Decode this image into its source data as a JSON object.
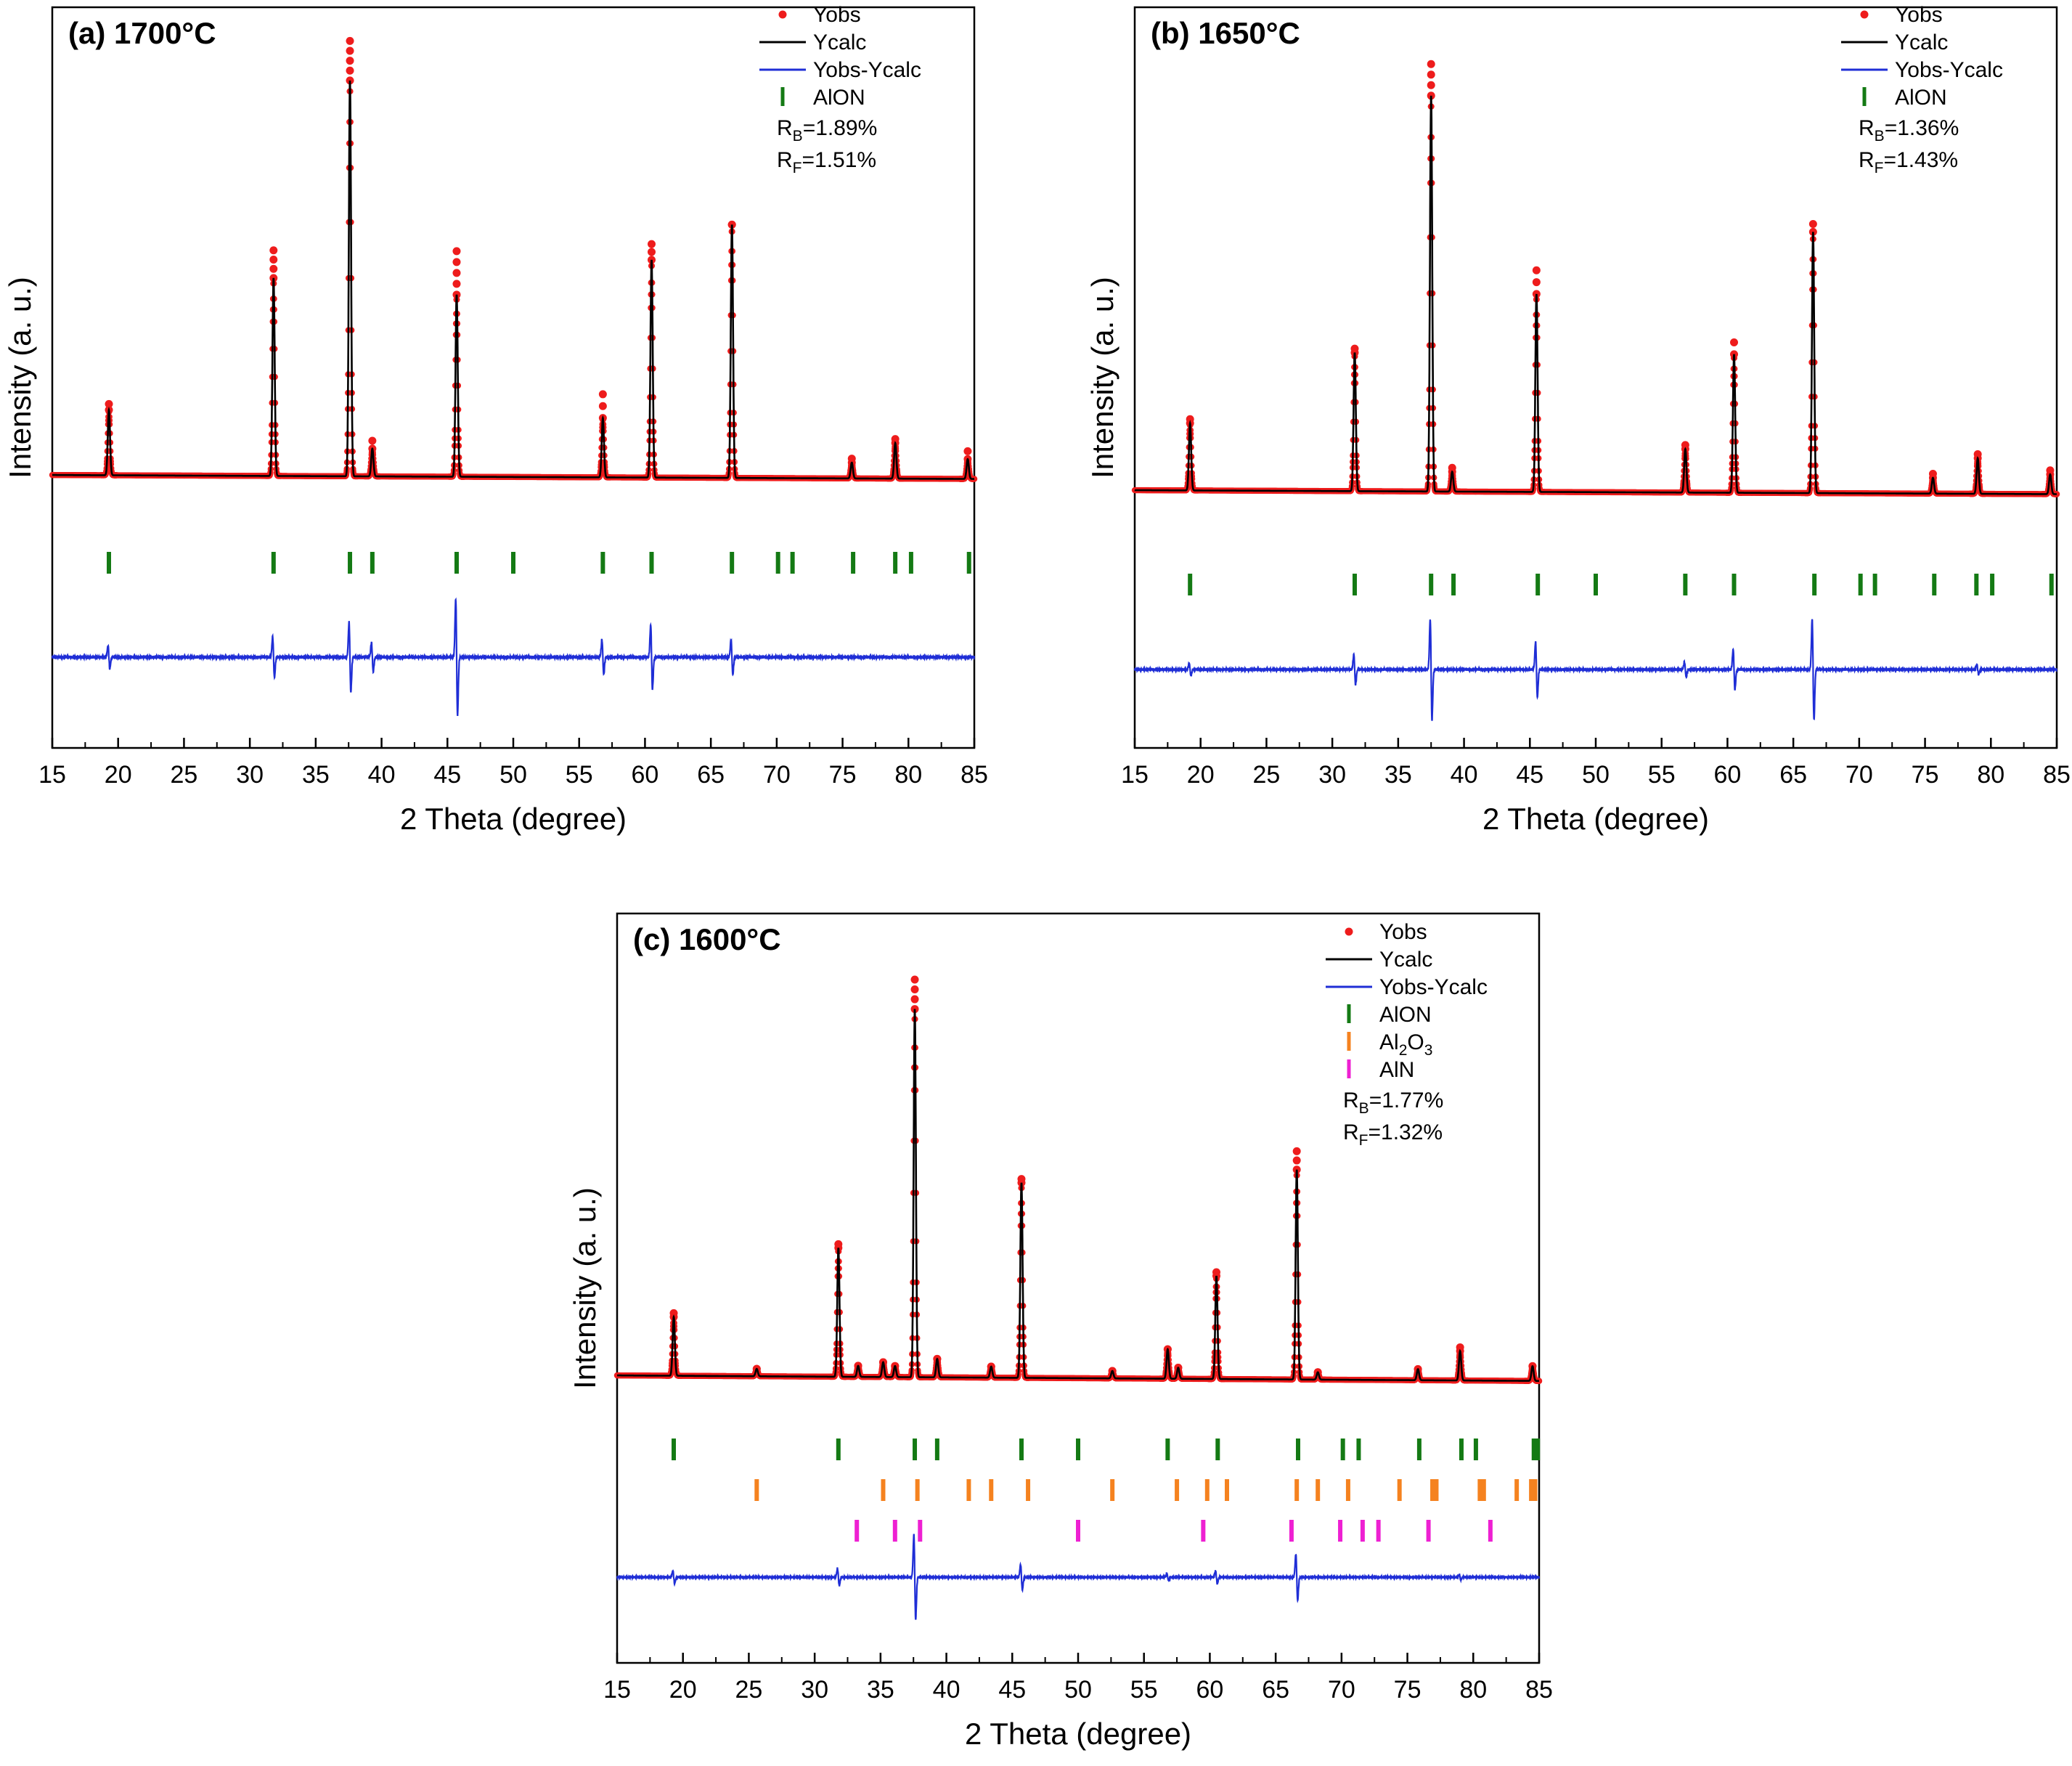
{
  "figure": {
    "panels_count": 3
  },
  "chart_data": [
    {
      "type": "line",
      "panel_label": "(a) 1700°C",
      "title": "",
      "xlabel": "2 Theta (degree)",
      "ylabel": "Intensity (a. u.)",
      "xlim": [
        15,
        85
      ],
      "x_ticks": [
        "15",
        "20",
        "25",
        "30",
        "35",
        "40",
        "45",
        "50",
        "55",
        "60",
        "65",
        "70",
        "75",
        "80",
        "85"
      ],
      "y_ticks": [],
      "legend_position": "top-right",
      "legend": [
        {
          "name": "Yobs",
          "kind": "dot",
          "color": "#ee1c1c"
        },
        {
          "name": "Ycalc",
          "kind": "line",
          "color": "#000000"
        },
        {
          "name": "Yobs-Ycalc",
          "kind": "line",
          "color": "#1f2ed6"
        },
        {
          "name": "AlON",
          "kind": "tick",
          "color": "#147a14"
        }
      ],
      "annotations": [
        {
          "prefix": "R",
          "sub": "B",
          "suffix": "=1.89%"
        },
        {
          "prefix": "R",
          "sub": "F",
          "suffix": "=1.51%"
        }
      ],
      "background": {
        "start": 0.075,
        "end": 0.065
      },
      "peaks": [
        {
          "x": 19.3,
          "h": 0.165,
          "obs": 0.18
        },
        {
          "x": 31.8,
          "h": 0.5,
          "obs": 0.57
        },
        {
          "x": 37.6,
          "h": 1.0,
          "obs": 1.1
        },
        {
          "x": 39.3,
          "h": 0.07,
          "obs": 0.09
        },
        {
          "x": 45.7,
          "h": 0.46,
          "obs": 0.57
        },
        {
          "x": 56.8,
          "h": 0.15,
          "obs": 0.21
        },
        {
          "x": 60.5,
          "h": 0.55,
          "obs": 0.59
        },
        {
          "x": 66.6,
          "h": 0.64,
          "obs": 0.64
        },
        {
          "x": 75.7,
          "h": 0.04,
          "obs": 0.05
        },
        {
          "x": 79.0,
          "h": 0.09,
          "obs": 0.1
        },
        {
          "x": 84.5,
          "h": 0.05,
          "obs": 0.07
        }
      ],
      "reflections": [
        {
          "phase": "AlON",
          "color": "#147a14",
          "x": [
            19.3,
            31.8,
            37.6,
            39.3,
            45.7,
            50.0,
            56.8,
            60.5,
            66.6,
            70.1,
            71.2,
            75.8,
            79.0,
            80.2,
            84.6
          ]
        }
      ],
      "difference": [
        {
          "x": 19.3,
          "a": 0.2
        },
        {
          "x": 31.8,
          "a": 0.35
        },
        {
          "x": 37.6,
          "a": 0.6
        },
        {
          "x": 39.3,
          "a": 0.25
        },
        {
          "x": 45.7,
          "a": 1.0
        },
        {
          "x": 56.8,
          "a": 0.3
        },
        {
          "x": 60.5,
          "a": 0.55
        },
        {
          "x": 66.6,
          "a": 0.3
        }
      ]
    },
    {
      "type": "line",
      "panel_label": "(b) 1650°C",
      "title": "",
      "xlabel": "2 Theta (degree)",
      "ylabel": "Intensity (a. u.)",
      "xlim": [
        15,
        85
      ],
      "x_ticks": [
        "15",
        "20",
        "25",
        "30",
        "35",
        "40",
        "45",
        "50",
        "55",
        "60",
        "65",
        "70",
        "75",
        "80",
        "85"
      ],
      "y_ticks": [],
      "legend_position": "top-right",
      "legend": [
        {
          "name": "Yobs",
          "kind": "dot",
          "color": "#ee1c1c"
        },
        {
          "name": "Ycalc",
          "kind": "line",
          "color": "#000000"
        },
        {
          "name": "Yobs-Ycalc",
          "kind": "line",
          "color": "#1f2ed6"
        },
        {
          "name": "AlON",
          "kind": "tick",
          "color": "#147a14"
        }
      ],
      "annotations": [
        {
          "prefix": "R",
          "sub": "B",
          "suffix": "=1.36%"
        },
        {
          "prefix": "R",
          "sub": "F",
          "suffix": "=1.43%"
        }
      ],
      "background": {
        "start": 0.11,
        "end": 0.1
      },
      "peaks": [
        {
          "x": 19.2,
          "h": 0.17,
          "obs": 0.18
        },
        {
          "x": 31.7,
          "h": 0.35,
          "obs": 0.36
        },
        {
          "x": 37.5,
          "h": 1.0,
          "obs": 1.08
        },
        {
          "x": 39.1,
          "h": 0.05,
          "obs": 0.06
        },
        {
          "x": 45.5,
          "h": 0.5,
          "obs": 0.56
        },
        {
          "x": 56.8,
          "h": 0.11,
          "obs": 0.12
        },
        {
          "x": 60.5,
          "h": 0.35,
          "obs": 0.38
        },
        {
          "x": 66.5,
          "h": 0.66,
          "obs": 0.68
        },
        {
          "x": 75.6,
          "h": 0.04,
          "obs": 0.05
        },
        {
          "x": 79.0,
          "h": 0.09,
          "obs": 0.1
        },
        {
          "x": 84.5,
          "h": 0.05,
          "obs": 0.06
        }
      ],
      "reflections": [
        {
          "phase": "AlON",
          "color": "#147a14",
          "x": [
            19.2,
            31.7,
            37.5,
            39.2,
            45.6,
            50.0,
            56.8,
            60.5,
            66.6,
            70.1,
            71.2,
            75.7,
            78.9,
            80.1,
            84.6
          ]
        }
      ],
      "difference": [
        {
          "x": 19.2,
          "a": 0.12
        },
        {
          "x": 31.7,
          "a": 0.3
        },
        {
          "x": 37.5,
          "a": 1.0
        },
        {
          "x": 45.5,
          "a": 0.55
        },
        {
          "x": 56.8,
          "a": 0.15
        },
        {
          "x": 60.5,
          "a": 0.4
        },
        {
          "x": 66.5,
          "a": 1.0
        },
        {
          "x": 79.0,
          "a": 0.1
        }
      ]
    },
    {
      "type": "line",
      "panel_label": "(c) 1600°C",
      "title": "",
      "xlabel": "2 Theta (degree)",
      "ylabel": "Intensity (a. u.)",
      "xlim": [
        15,
        85
      ],
      "x_ticks": [
        "15",
        "20",
        "25",
        "30",
        "35",
        "40",
        "45",
        "50",
        "55",
        "60",
        "65",
        "70",
        "75",
        "80",
        "85"
      ],
      "y_ticks": [],
      "legend_position": "top-right",
      "legend": [
        {
          "name": "Yobs",
          "kind": "dot",
          "color": "#ee1c1c"
        },
        {
          "name": "Ycalc",
          "kind": "line",
          "color": "#000000"
        },
        {
          "name": "Yobs-Ycalc",
          "kind": "line",
          "color": "#1f2ed6"
        },
        {
          "name": "AlON",
          "kind": "tick",
          "color": "#147a14"
        },
        {
          "name": "Al",
          "sub": "2",
          "name2": "O",
          "sub2": "3",
          "kind": "tick",
          "color": "#f5821f"
        },
        {
          "name": "AlN",
          "kind": "tick",
          "color": "#ee20d2"
        }
      ],
      "annotations": [
        {
          "prefix": "R",
          "sub": "B",
          "suffix": "=1.77%"
        },
        {
          "prefix": "R",
          "sub": "F",
          "suffix": "=1.32%"
        }
      ],
      "background": {
        "start": 0.055,
        "end": 0.04
      },
      "peaks": [
        {
          "x": 19.3,
          "h": 0.16,
          "obs": 0.17
        },
        {
          "x": 25.6,
          "h": 0.02,
          "obs": 0.02
        },
        {
          "x": 31.8,
          "h": 0.35,
          "obs": 0.36
        },
        {
          "x": 33.3,
          "h": 0.03,
          "obs": 0.03
        },
        {
          "x": 35.2,
          "h": 0.04,
          "obs": 0.04
        },
        {
          "x": 36.1,
          "h": 0.03,
          "obs": 0.03
        },
        {
          "x": 37.6,
          "h": 1.0,
          "obs": 1.08
        },
        {
          "x": 39.3,
          "h": 0.05,
          "obs": 0.05
        },
        {
          "x": 43.4,
          "h": 0.03,
          "obs": 0.03
        },
        {
          "x": 45.7,
          "h": 0.53,
          "obs": 0.54
        },
        {
          "x": 52.6,
          "h": 0.02,
          "obs": 0.02
        },
        {
          "x": 56.8,
          "h": 0.08,
          "obs": 0.08
        },
        {
          "x": 57.6,
          "h": 0.03,
          "obs": 0.03
        },
        {
          "x": 60.5,
          "h": 0.28,
          "obs": 0.29
        },
        {
          "x": 66.6,
          "h": 0.57,
          "obs": 0.62
        },
        {
          "x": 68.2,
          "h": 0.02,
          "obs": 0.02
        },
        {
          "x": 75.8,
          "h": 0.03,
          "obs": 0.03
        },
        {
          "x": 79.0,
          "h": 0.08,
          "obs": 0.09
        },
        {
          "x": 84.5,
          "h": 0.04,
          "obs": 0.04
        }
      ],
      "reflections": [
        {
          "phase": "AlON",
          "color": "#147a14",
          "x": [
            19.3,
            31.8,
            37.6,
            39.3,
            45.7,
            50.0,
            56.8,
            60.6,
            66.7,
            70.1,
            71.3,
            75.9,
            79.1,
            80.2,
            84.6,
            84.9
          ]
        },
        {
          "phase": "Al2O3",
          "color": "#f5821f",
          "x": [
            25.6,
            35.2,
            37.8,
            41.7,
            43.4,
            46.2,
            52.6,
            57.5,
            59.8,
            61.3,
            66.6,
            68.2,
            70.5,
            74.4,
            76.9,
            77.2,
            80.5,
            80.8,
            83.3,
            84.4,
            84.7
          ]
        },
        {
          "phase": "AlN",
          "color": "#ee20d2",
          "x": [
            33.2,
            36.1,
            38.0,
            50.0,
            59.5,
            66.2,
            69.9,
            71.6,
            72.8,
            76.6,
            81.3
          ]
        }
      ],
      "difference": [
        {
          "x": 19.3,
          "a": 0.15
        },
        {
          "x": 31.8,
          "a": 0.2
        },
        {
          "x": 37.6,
          "a": 1.0
        },
        {
          "x": 45.7,
          "a": 0.3
        },
        {
          "x": 56.8,
          "a": 0.08
        },
        {
          "x": 60.5,
          "a": 0.15
        },
        {
          "x": 66.6,
          "a": 0.55
        },
        {
          "x": 79.0,
          "a": 0.06
        }
      ]
    }
  ]
}
